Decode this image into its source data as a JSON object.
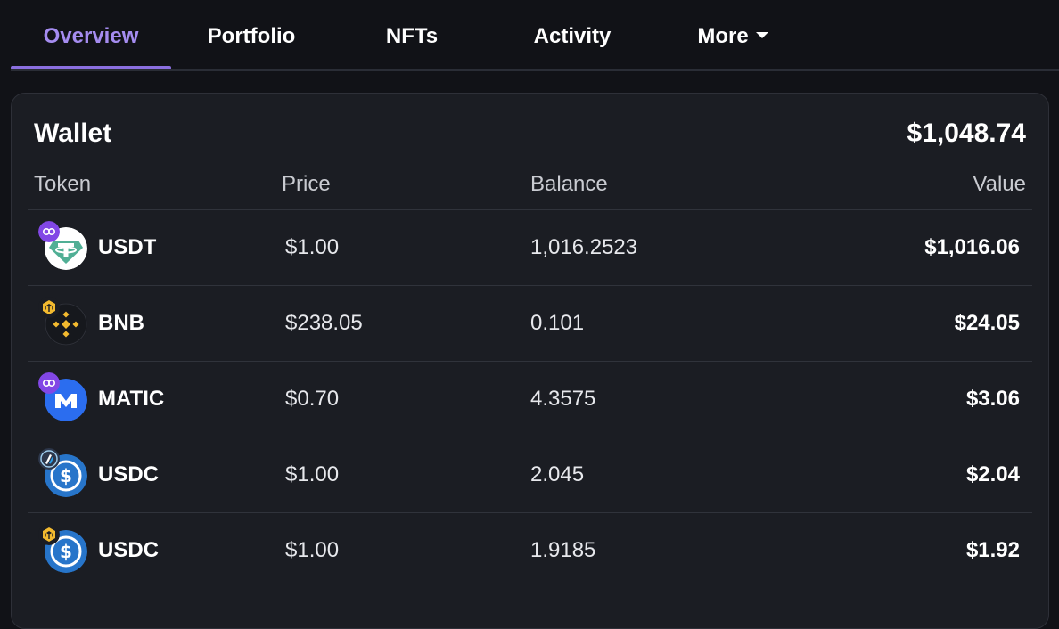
{
  "tabs": [
    {
      "label": "Overview",
      "active": true
    },
    {
      "label": "Portfolio"
    },
    {
      "label": "NFTs"
    },
    {
      "label": "Activity"
    },
    {
      "label": "More"
    }
  ],
  "wallet": {
    "title": "Wallet",
    "total": "$1,048.74",
    "columns": {
      "token": "Token",
      "price": "Price",
      "balance": "Balance",
      "value": "Value"
    },
    "rows": [
      {
        "symbol": "USDT",
        "price": "$1.00",
        "balance": "1,016.2523",
        "value": "$1,016.06",
        "icon": "tether-icon",
        "chain": "polygon-chain-icon"
      },
      {
        "symbol": "BNB",
        "price": "$238.05",
        "balance": "0.101",
        "value": "$24.05",
        "icon": "bnb-icon",
        "chain": "bnb-chain-icon"
      },
      {
        "symbol": "MATIC",
        "price": "$0.70",
        "balance": "4.3575",
        "value": "$3.06",
        "icon": "matic-icon",
        "chain": "polygon-chain-icon"
      },
      {
        "symbol": "USDC",
        "price": "$1.00",
        "balance": "2.045",
        "value": "$2.04",
        "icon": "usdc-icon",
        "chain": "arbitrum-chain-icon"
      },
      {
        "symbol": "USDC",
        "price": "$1.00",
        "balance": "1.9185",
        "value": "$1.92",
        "icon": "usdc-icon",
        "chain": "bnb-chain-icon"
      }
    ]
  },
  "colors": {
    "accent": "#8b6fe0",
    "background": "#111217",
    "card": "#1b1d23",
    "tether": "#50af95",
    "bnb": "#f3ba2f",
    "matic": "#2b6def",
    "usdc": "#2775ca",
    "polygon": "#8247e5",
    "arbitrum": "#2d374b"
  }
}
